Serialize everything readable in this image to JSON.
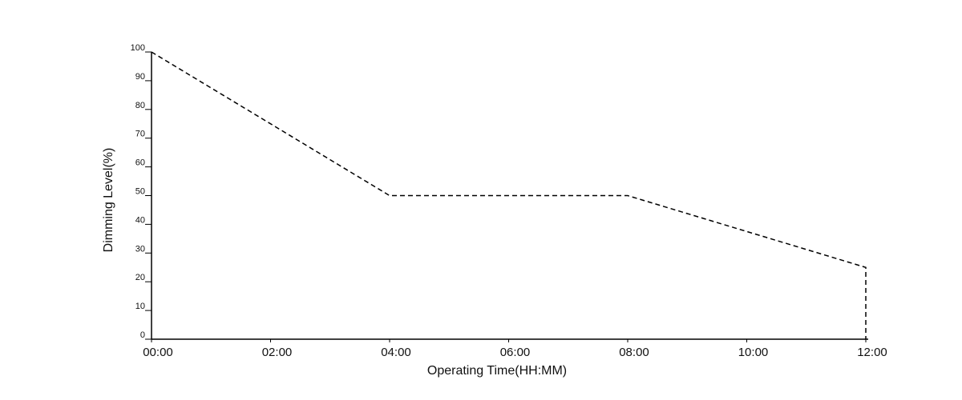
{
  "chart_data": {
    "type": "line",
    "x_label": "Operating Time(HH:MM)",
    "y_label": "Dimming Level(%)",
    "x": [
      0,
      4,
      8,
      12,
      12
    ],
    "series": [
      {
        "color": "#000000",
        "values": [
          100,
          50,
          50,
          25,
          0
        ]
      }
    ],
    "xlim": [
      0,
      12
    ],
    "xticks": [
      {
        "value": 0,
        "label": "00:00"
      },
      {
        "value": 2,
        "label": "02:00"
      },
      {
        "value": 4,
        "label": "04:00"
      },
      {
        "value": 6,
        "label": "06:00"
      },
      {
        "value": 8,
        "label": "08:00"
      },
      {
        "value": 10,
        "label": "10:00"
      },
      {
        "value": 12,
        "label": "12:00"
      }
    ],
    "ylim": [
      0,
      100
    ],
    "yticks": [
      0,
      10,
      20,
      30,
      40,
      50,
      60,
      70,
      80,
      90,
      100
    ],
    "line_style": "dashed",
    "grid": false
  }
}
